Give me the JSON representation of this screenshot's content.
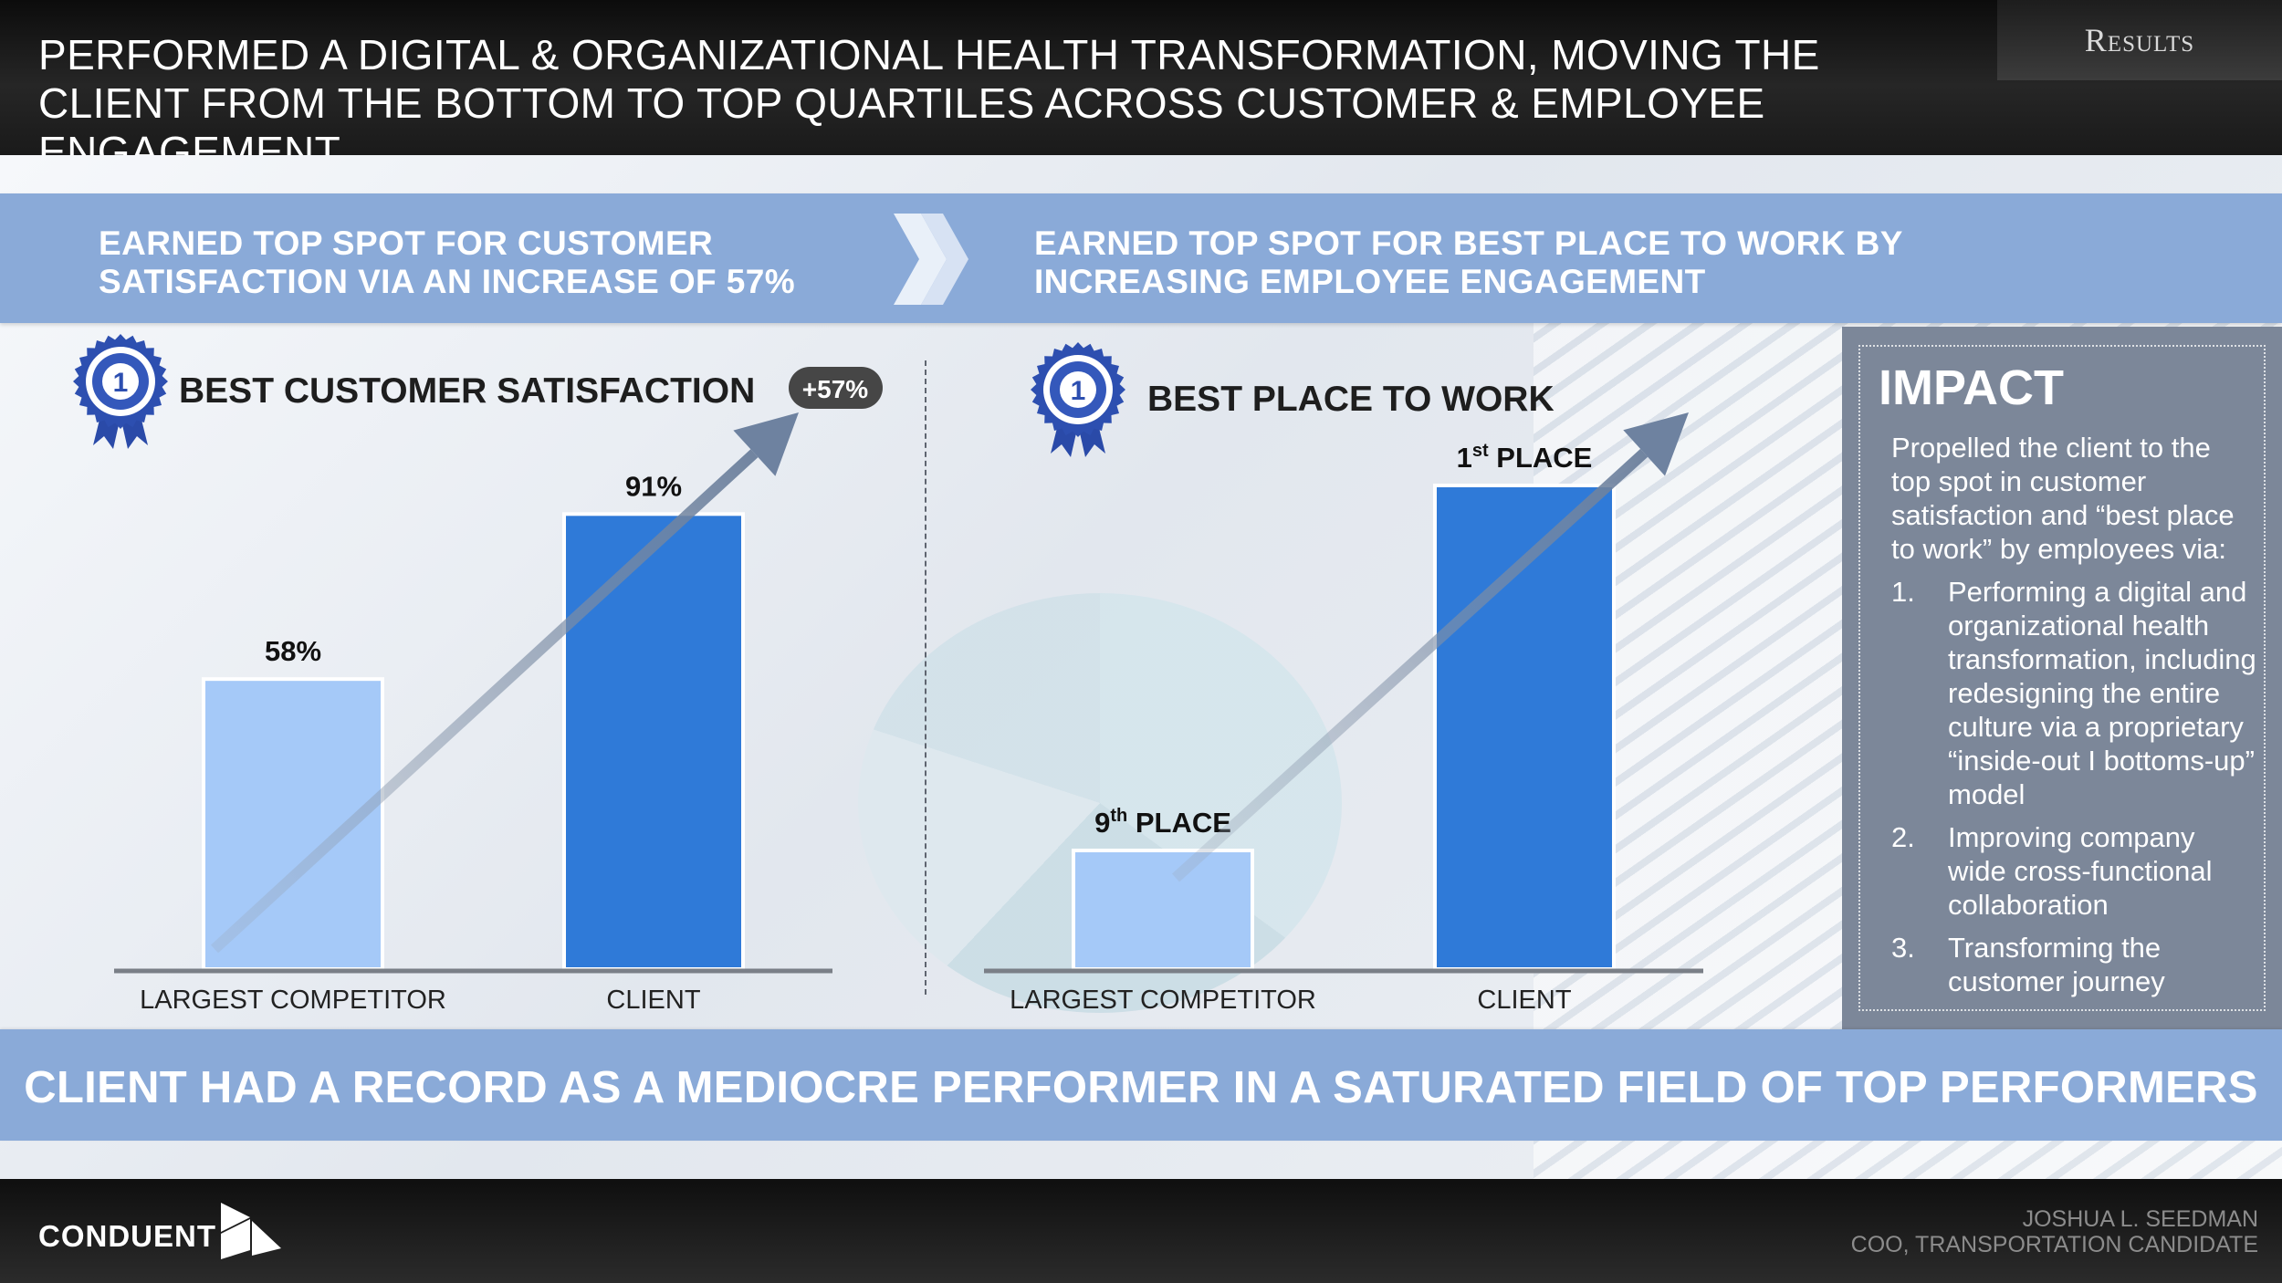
{
  "header": {
    "title": "PERFORMED A DIGITAL & ORGANIZATIONAL HEALTH TRANSFORMATION, MOVING THE CLIENT FROM THE BOTTOM TO TOP QUARTILES ACROSS CUSTOMER & EMPLOYEE ENGAGEMENT",
    "section_tab": "Results"
  },
  "banner": {
    "left": "EARNED TOP SPOT FOR CUSTOMER SATISFACTION VIA AN INCREASE OF 57%",
    "right": "EARNED TOP SPOT FOR BEST PLACE TO WORK BY INCREASING EMPLOYEE ENGAGEMENT"
  },
  "chart_data": [
    {
      "type": "bar",
      "title": "BEST CUSTOMER  SATISFACTION",
      "badge": "+57%",
      "badge_icon": "first-place-ribbon-icon",
      "categories": [
        "LARGEST COMPETITOR",
        "CLIENT"
      ],
      "values": [
        58,
        91
      ],
      "data_labels": [
        "58%",
        "91%"
      ],
      "ylim": [
        0,
        100
      ],
      "colors": [
        "#a5c9f8",
        "#2f7ad8"
      ],
      "trend_arrow": true,
      "grid": false
    },
    {
      "type": "bar",
      "title": "BEST PLACE TO WORK",
      "badge_icon": "first-place-ribbon-icon",
      "categories": [
        "LARGEST COMPETITOR",
        "CLIENT"
      ],
      "values": [
        9,
        1
      ],
      "value_meaning": "rank (place)",
      "data_labels": [
        {
          "num": "9",
          "sup": "th",
          "text": " PLACE"
        },
        {
          "num": "1",
          "sup": "st",
          "text": " PLACE"
        }
      ],
      "colors": [
        "#a5c9f8",
        "#2f7ad8"
      ],
      "trend_arrow": true,
      "grid": false
    }
  ],
  "impact": {
    "title": "IMPACT",
    "intro": "Propelled the client to the top spot in customer satisfaction and “best place to work” by employees via:",
    "items": [
      {
        "num": "1.",
        "text": "Performing a digital and organizational health transformation, including redesigning the entire culture via a proprietary “inside-out I bottoms-up” model"
      },
      {
        "num": "2.",
        "text": "Improving company wide cross-functional collaboration"
      },
      {
        "num": "3.",
        "text": "Transforming the customer journey"
      }
    ]
  },
  "bottom_banner": "CLIENT HAD A RECORD AS A MEDIOCRE PERFORMER IN A SATURATED FIELD OF TOP PERFORMERS",
  "footer": {
    "logo": "CONDUENT",
    "logo_icon": "conduent-logo-icon",
    "name": "JOSHUA L. SEEDMAN",
    "role": "COO, TRANSPORTATION CANDIDATE"
  }
}
